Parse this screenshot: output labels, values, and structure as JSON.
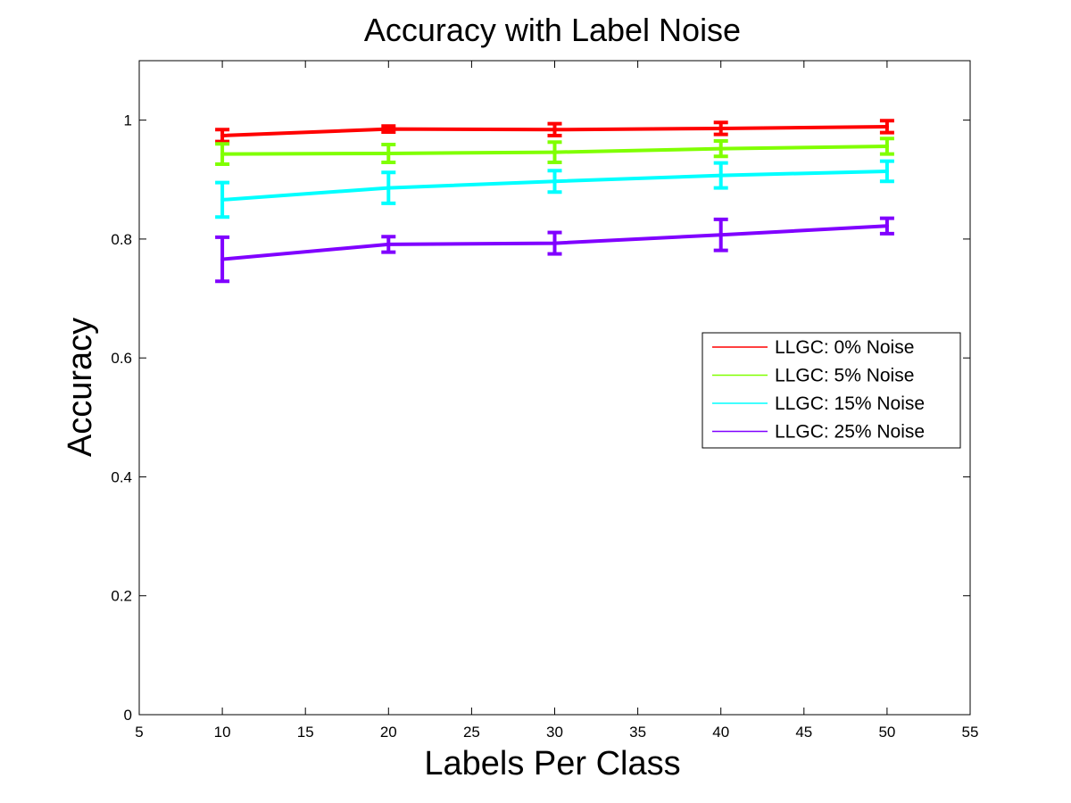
{
  "chart_data": {
    "type": "line",
    "title": "Accuracy with Label Noise",
    "xlabel": "Labels Per Class",
    "ylabel": "Accuracy",
    "xlim": [
      5,
      55
    ],
    "ylim": [
      0,
      1.1
    ],
    "xticks": [
      5,
      10,
      15,
      20,
      25,
      30,
      35,
      40,
      45,
      50,
      55
    ],
    "yticks": [
      0,
      0.2,
      0.4,
      0.6,
      0.8,
      1
    ],
    "ytick_labels": [
      "0",
      "0.2",
      "0.4",
      "0.6",
      "0.8",
      "1"
    ],
    "grid": false,
    "legend_position": "right",
    "x": [
      10,
      20,
      30,
      40,
      50
    ],
    "series": [
      {
        "name": "LLGC: 0% Noise",
        "color": "#ff0000",
        "values": [
          0.974,
          0.985,
          0.984,
          0.986,
          0.989
        ],
        "errors": [
          0.01,
          0.005,
          0.01,
          0.01,
          0.01
        ]
      },
      {
        "name": "LLGC: 5% Noise",
        "color": "#80ff00",
        "values": [
          0.943,
          0.944,
          0.946,
          0.952,
          0.956
        ],
        "errors": [
          0.017,
          0.015,
          0.017,
          0.013,
          0.013
        ]
      },
      {
        "name": "LLGC: 15% Noise",
        "color": "#00ffff",
        "values": [
          0.866,
          0.886,
          0.897,
          0.907,
          0.914
        ],
        "errors": [
          0.029,
          0.026,
          0.018,
          0.021,
          0.017
        ]
      },
      {
        "name": "LLGC: 25% Noise",
        "color": "#8000ff",
        "values": [
          0.766,
          0.791,
          0.793,
          0.807,
          0.822
        ],
        "errors": [
          0.037,
          0.013,
          0.018,
          0.026,
          0.013
        ]
      }
    ]
  }
}
